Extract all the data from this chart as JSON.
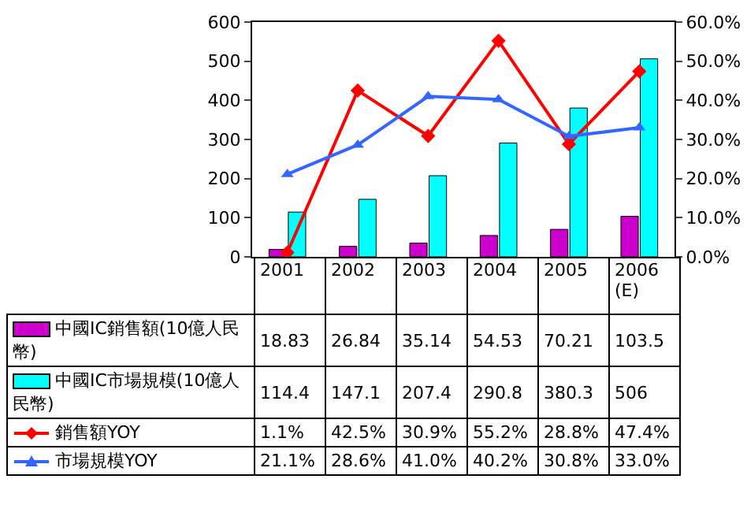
{
  "chart_data": {
    "type": "bar",
    "categories": [
      "2001",
      "2002",
      "2003",
      "2004",
      "2005",
      "2006(E)"
    ],
    "series": [
      {
        "name": "中國IC銷售額(10億人民幣)",
        "color": "#cc00cc",
        "values": [
          18.83,
          26.84,
          35.14,
          54.53,
          70.21,
          103.5
        ],
        "value_labels": [
          "18.83",
          "26.84",
          "35.14",
          "54.53",
          "70.21",
          "103.5"
        ]
      },
      {
        "name": "中國IC市場規模(10億人民幣)",
        "color": "#00ffff",
        "values": [
          114.4,
          147.1,
          207.4,
          290.8,
          380.3,
          506
        ],
        "value_labels": [
          "114.4",
          "147.1",
          "207.4",
          "290.8",
          "380.3",
          "506"
        ]
      },
      {
        "name": "銷售額YOY",
        "type": "line",
        "axis": "y2",
        "marker": "diamond",
        "color": "#ff0000",
        "values": [
          1.1,
          42.5,
          30.9,
          55.2,
          28.8,
          47.4
        ],
        "value_labels": [
          "1.1%",
          "42.5%",
          "30.9%",
          "55.2%",
          "28.8%",
          "47.4%"
        ]
      },
      {
        "name": "市場規模YOY",
        "type": "line",
        "axis": "y2",
        "marker": "triangle",
        "color": "#3366ff",
        "values": [
          21.1,
          28.6,
          41.0,
          40.2,
          30.8,
          33.0
        ],
        "value_labels": [
          "21.1%",
          "28.6%",
          "41.0%",
          "40.2%",
          "30.8%",
          "33.0%"
        ]
      }
    ],
    "ylim": [
      0,
      600
    ],
    "yticks": [
      0,
      100,
      200,
      300,
      400,
      500,
      600
    ],
    "y2lim": [
      0,
      60
    ],
    "y2ticks": [
      {
        "value": 0,
        "label": "0.0%"
      },
      {
        "value": 10,
        "label": "10.0%"
      },
      {
        "value": 20,
        "label": "20.0%"
      },
      {
        "value": 30,
        "label": "30.0%"
      },
      {
        "value": 40,
        "label": "40.0%"
      },
      {
        "value": 50,
        "label": "50.0%"
      },
      {
        "value": 60,
        "label": "60.0%"
      }
    ],
    "grid": false,
    "legend": "bottom"
  }
}
